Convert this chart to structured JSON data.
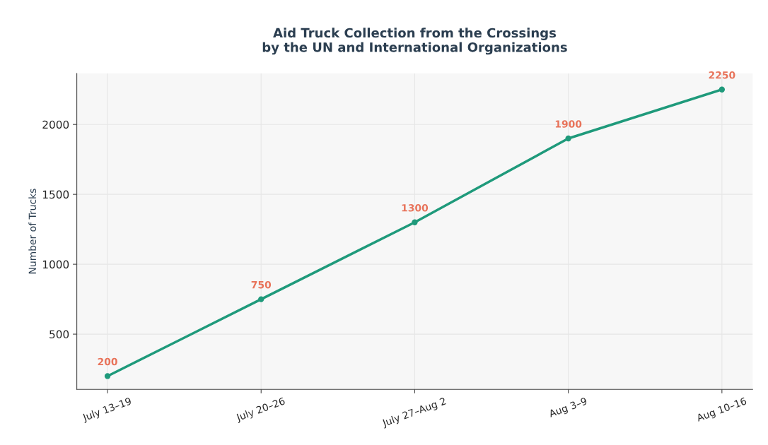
{
  "chart_data": {
    "type": "line",
    "title": "Aid Truck Collection from the Crossings\nby the UN and International Organizations",
    "ylabel": "Number of Trucks",
    "categories": [
      "July 13–19",
      "July 20–26",
      "July 27–Aug 2",
      "Aug 3–9",
      "Aug 10–16"
    ],
    "series": [
      {
        "color": "#1f9a7b",
        "values": [
          200,
          750,
          1300,
          1900,
          2250
        ]
      }
    ],
    "ylim": [
      105,
      2365
    ],
    "yticks": [
      500,
      1000,
      1500,
      2000
    ],
    "grid": true,
    "marker": "circle",
    "line_style": "solid",
    "data_labels": true
  }
}
